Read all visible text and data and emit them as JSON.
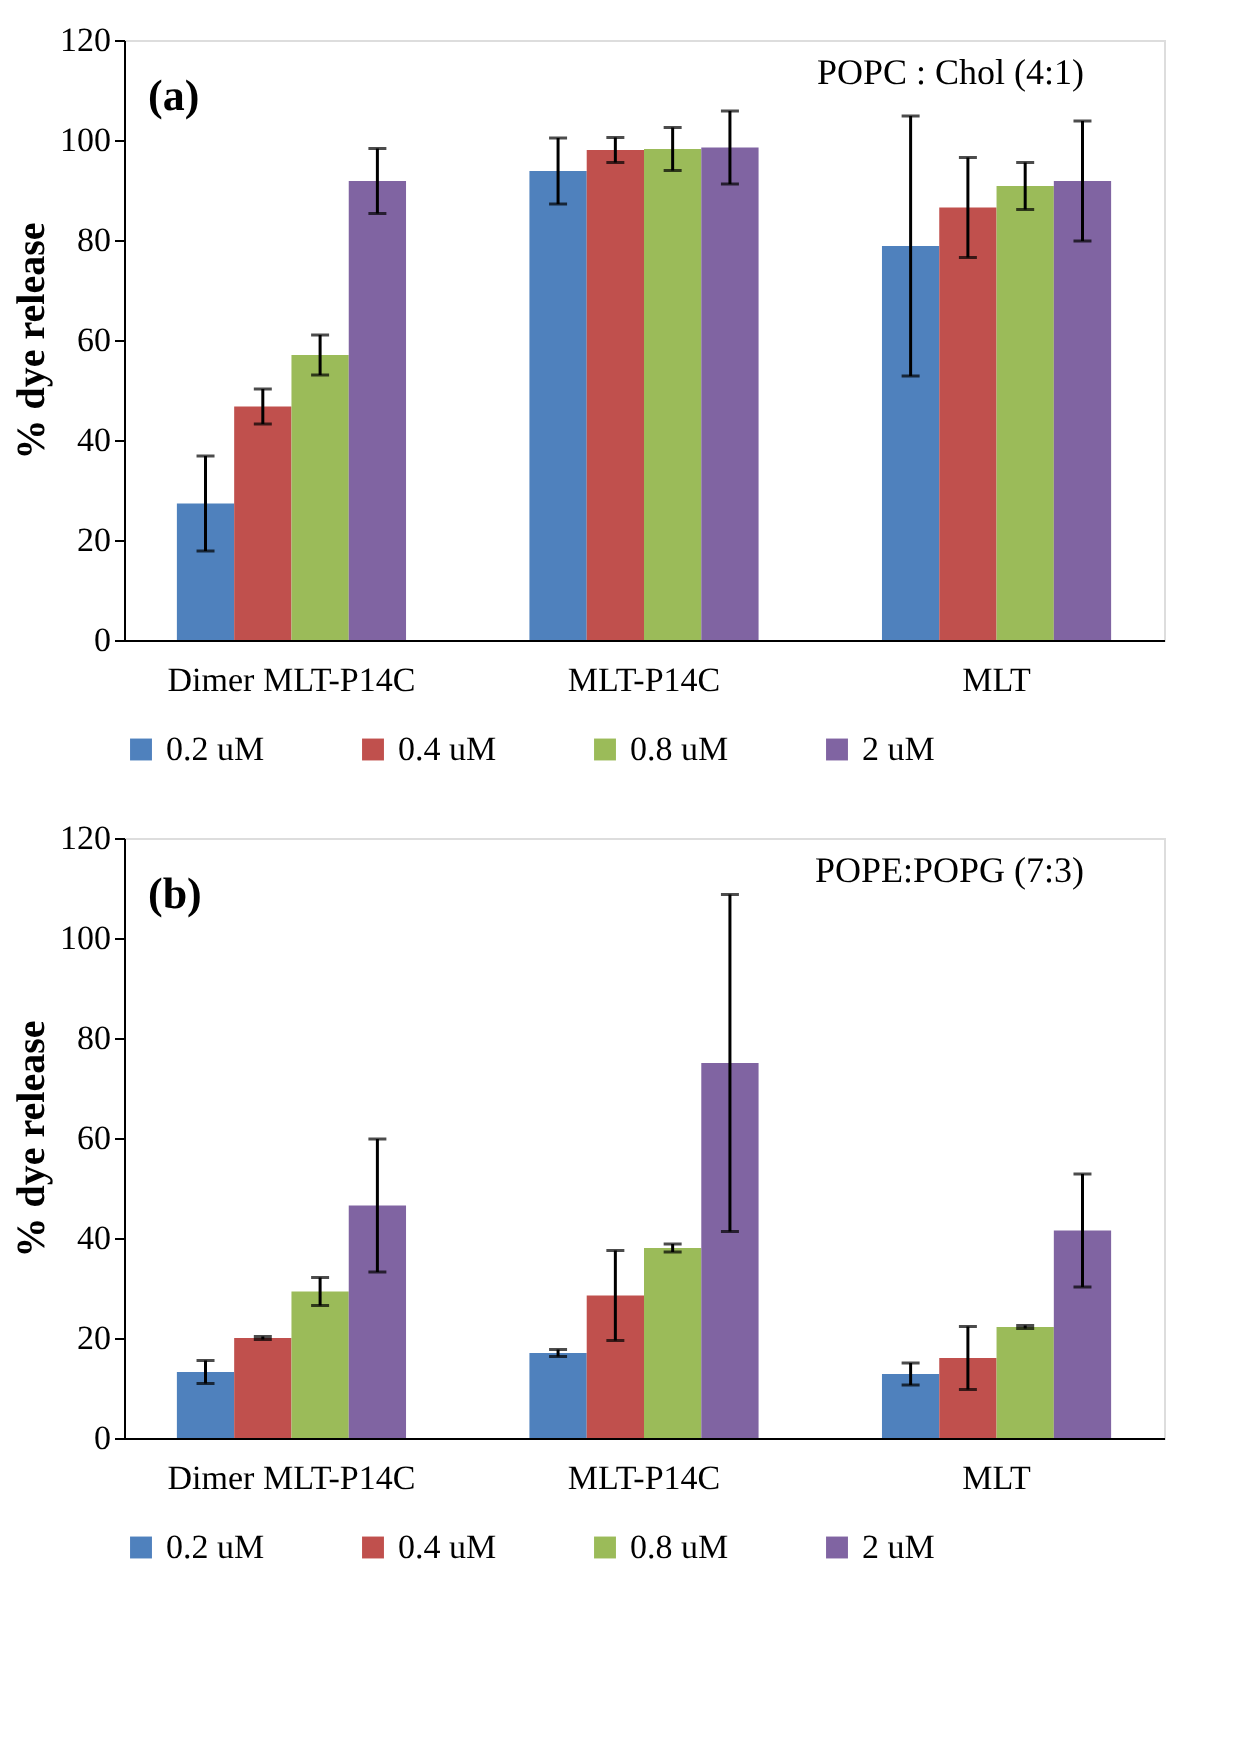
{
  "chart_data": [
    {
      "type": "bar",
      "ylabel": "% dye release",
      "annotations": [
        "(a)",
        "POPC : Chol (4:1)"
      ],
      "categories": [
        "Dimer MLT-P14C",
        "MLT-P14C",
        "MLT"
      ],
      "ylim": [
        0,
        120
      ],
      "yticks": [
        0,
        20,
        40,
        60,
        80,
        100,
        120
      ],
      "grid": false,
      "legend": "bottom",
      "series": [
        {
          "name": "0.2 uM",
          "color": "#4f81bd",
          "values": [
            27.3,
            93.8,
            78.8
          ],
          "errors": [
            9.5,
            6.6,
            26
          ]
        },
        {
          "name": "0.4 uM",
          "color": "#c0504d",
          "values": [
            46.7,
            98,
            86.5
          ],
          "errors": [
            3.5,
            2.5,
            10
          ]
        },
        {
          "name": "0.8 uM",
          "color": "#9bbb59",
          "values": [
            57,
            98.2,
            90.8
          ],
          "errors": [
            4,
            4.3,
            4.7
          ]
        },
        {
          "name": "2 uM",
          "color": "#8064a2",
          "values": [
            91.8,
            98.5,
            91.8
          ],
          "errors": [
            6.5,
            7.3,
            12
          ]
        }
      ]
    },
    {
      "type": "bar",
      "ylabel": "% dye release",
      "annotations": [
        "(b)",
        "POPE:POPG (7:3)"
      ],
      "categories": [
        "Dimer MLT-P14C",
        "MLT-P14C",
        "MLT"
      ],
      "ylim": [
        0,
        120
      ],
      "yticks": [
        0,
        20,
        40,
        60,
        80,
        100,
        120
      ],
      "grid": false,
      "legend": "bottom",
      "series": [
        {
          "name": "0.2 uM",
          "color": "#4f81bd",
          "values": [
            13.2,
            17,
            12.8
          ],
          "errors": [
            2.3,
            0.7,
            2.2
          ]
        },
        {
          "name": "0.4 uM",
          "color": "#c0504d",
          "values": [
            20,
            28.5,
            16
          ],
          "errors": [
            0.3,
            9,
            6.3
          ]
        },
        {
          "name": "0.8 uM",
          "color": "#9bbb59",
          "values": [
            29.3,
            38,
            22.2
          ],
          "errors": [
            2.8,
            0.8,
            0.3
          ]
        },
        {
          "name": "2 uM",
          "color": "#8064a2",
          "values": [
            46.5,
            75,
            41.5
          ],
          "errors": [
            13.3,
            33.7,
            11.3
          ]
        }
      ]
    }
  ]
}
